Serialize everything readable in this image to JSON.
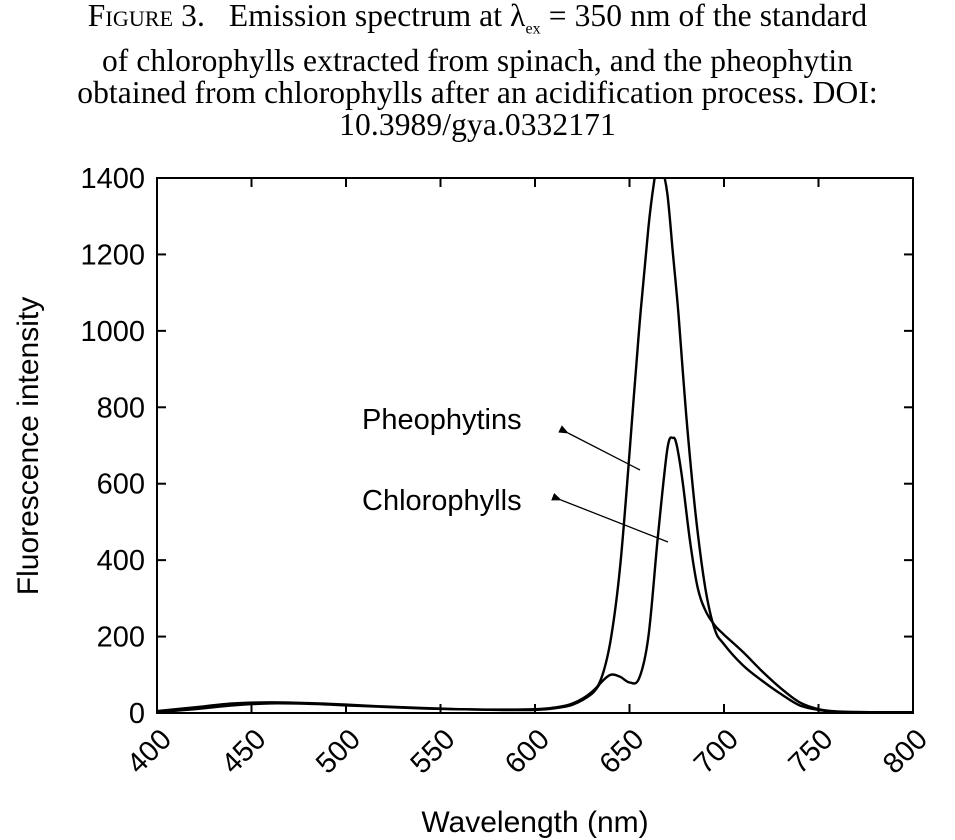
{
  "caption": {
    "figure_label": "Figure 3.",
    "line1_prefix": "Emission spectrum at λ",
    "subscript": "ex",
    "line1_suffix": " = 350 nm of the standard",
    "line2": "of chlorophylls extracted from spinach, and the pheophytin",
    "line3": "obtained from chlorophylls after an acidification process. DOI:",
    "line4": "10.3989/gya.0332171"
  },
  "chart_data": {
    "type": "line",
    "xlabel": "Wavelength (nm)",
    "ylabel": "Fluorescence intensity",
    "xlim": [
      400,
      800
    ],
    "ylim": [
      0,
      1400
    ],
    "xticks": [
      400,
      450,
      500,
      550,
      600,
      650,
      700,
      750,
      800
    ],
    "yticks": [
      0,
      200,
      400,
      600,
      800,
      1000,
      1200,
      1400
    ],
    "grid": false,
    "legend": "none",
    "annotations": [
      {
        "text": "Pheophytins",
        "series": "Pheophytins"
      },
      {
        "text": "Chlorophylls",
        "series": "Chlorophylls"
      }
    ],
    "series": [
      {
        "name": "Pheophytins",
        "x": [
          400,
          420,
          440,
          460,
          480,
          500,
          520,
          540,
          560,
          580,
          600,
          610,
          620,
          630,
          635,
          640,
          645,
          650,
          655,
          660,
          663,
          665,
          667,
          670,
          673,
          676,
          680,
          685,
          690,
          695,
          700,
          710,
          720,
          730,
          740,
          750,
          760,
          780,
          800
        ],
        "y": [
          2,
          10,
          20,
          25,
          24,
          20,
          16,
          12,
          10,
          9,
          10,
          14,
          25,
          55,
          90,
          190,
          380,
          680,
          1000,
          1270,
          1390,
          1440,
          1430,
          1360,
          1200,
          1040,
          780,
          520,
          330,
          220,
          180,
          125,
          85,
          50,
          20,
          8,
          3,
          2,
          2
        ]
      },
      {
        "name": "Chlorophylls",
        "x": [
          400,
          420,
          440,
          460,
          480,
          500,
          520,
          540,
          560,
          580,
          600,
          610,
          620,
          630,
          635,
          640,
          645,
          650,
          655,
          660,
          665,
          670,
          673,
          675,
          678,
          682,
          686,
          690,
          695,
          700,
          710,
          720,
          730,
          740,
          750,
          760,
          780,
          800
        ],
        "y": [
          5,
          15,
          25,
          28,
          26,
          22,
          17,
          13,
          10,
          8,
          8,
          12,
          22,
          50,
          80,
          100,
          95,
          80,
          90,
          200,
          460,
          690,
          720,
          700,
          610,
          450,
          330,
          270,
          230,
          205,
          160,
          110,
          65,
          28,
          10,
          4,
          2,
          1
        ]
      }
    ]
  }
}
